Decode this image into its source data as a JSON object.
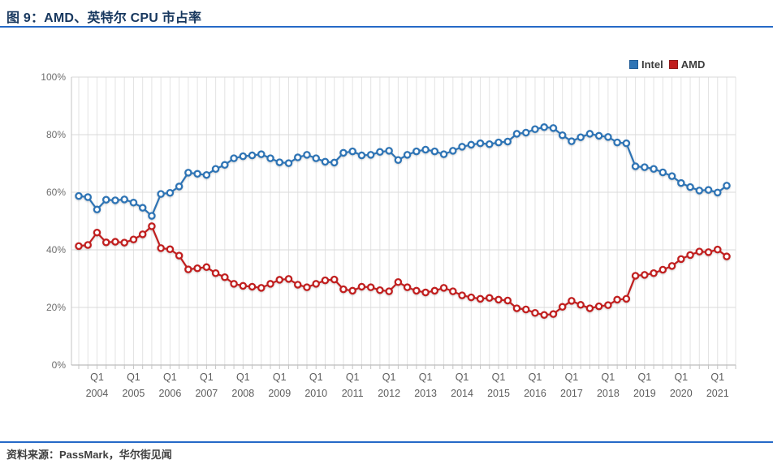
{
  "figure": {
    "title": "图 9：AMD、英特尔 CPU 市占率",
    "source": "资料来源：PassMark，华尔街见闻"
  },
  "chart_data": {
    "type": "line",
    "title": "AMD、英特尔 CPU 市占率",
    "x_unit": "quarter",
    "x_range": "2004Q1 - 2021Q4",
    "quarter_tick_label": "Q1",
    "year_labels": [
      "2004",
      "2005",
      "2006",
      "2007",
      "2008",
      "2009",
      "2010",
      "2011",
      "2012",
      "2013",
      "2014",
      "2015",
      "2016",
      "2017",
      "2018",
      "2019",
      "2020",
      "2021"
    ],
    "y_tick_labels": [
      "0%",
      "20%",
      "40%",
      "60%",
      "80%",
      "100%"
    ],
    "ylim": [
      0,
      100
    ],
    "grid": true,
    "legend_position": "top-right",
    "marker": "open-circle",
    "series": [
      {
        "name": "Intel",
        "color": "#2E74B5",
        "swatch_border": "#1F5B96",
        "values": [
          58.7,
          58.3,
          54.0,
          57.4,
          57.2,
          57.5,
          56.4,
          54.6,
          51.8,
          59.4,
          59.8,
          62.0,
          66.8,
          66.4,
          66.0,
          68.1,
          69.5,
          71.8,
          72.5,
          72.8,
          73.2,
          71.8,
          70.4,
          70.1,
          72.1,
          73.0,
          71.8,
          70.6,
          70.3,
          73.7,
          74.2,
          72.8,
          73.0,
          74.0,
          74.4,
          71.2,
          73.0,
          74.2,
          74.8,
          74.2,
          73.2,
          74.4,
          75.8,
          76.5,
          77.0,
          76.7,
          77.3,
          77.6,
          80.3,
          80.7,
          81.9,
          82.6,
          82.3,
          79.8,
          77.7,
          79.1,
          80.3,
          79.6,
          79.2,
          77.3,
          77.0,
          69.0,
          68.7,
          68.1,
          66.9,
          65.6,
          63.2,
          61.8,
          60.6,
          60.8,
          59.9,
          62.3
        ]
      },
      {
        "name": "AMD",
        "color": "#C11F1F",
        "swatch_border": "#8F1A1A",
        "values": [
          41.3,
          41.7,
          46.0,
          42.6,
          42.8,
          42.5,
          43.6,
          45.4,
          48.2,
          40.6,
          40.2,
          38.0,
          33.2,
          33.6,
          34.0,
          31.9,
          30.5,
          28.2,
          27.5,
          27.2,
          26.8,
          28.2,
          29.6,
          29.9,
          27.9,
          27.0,
          28.2,
          29.4,
          29.7,
          26.3,
          25.8,
          27.2,
          27.0,
          26.0,
          25.6,
          28.8,
          27.0,
          25.8,
          25.2,
          25.8,
          26.8,
          25.6,
          24.2,
          23.5,
          23.0,
          23.3,
          22.7,
          22.4,
          19.7,
          19.3,
          18.1,
          17.4,
          17.7,
          20.2,
          22.3,
          20.9,
          19.7,
          20.4,
          20.8,
          22.7,
          23.0,
          31.0,
          31.3,
          31.9,
          33.1,
          34.4,
          36.8,
          38.2,
          39.4,
          39.2,
          40.1,
          37.7
        ]
      }
    ]
  },
  "colors": {
    "rule_blue": "#2569C7",
    "title_navy": "#17375E",
    "grid_light": "#E3E3E3",
    "grid_major": "#D9D9D9",
    "axis_gray": "#ABABAB",
    "tick_text": "#6E6E6E"
  }
}
